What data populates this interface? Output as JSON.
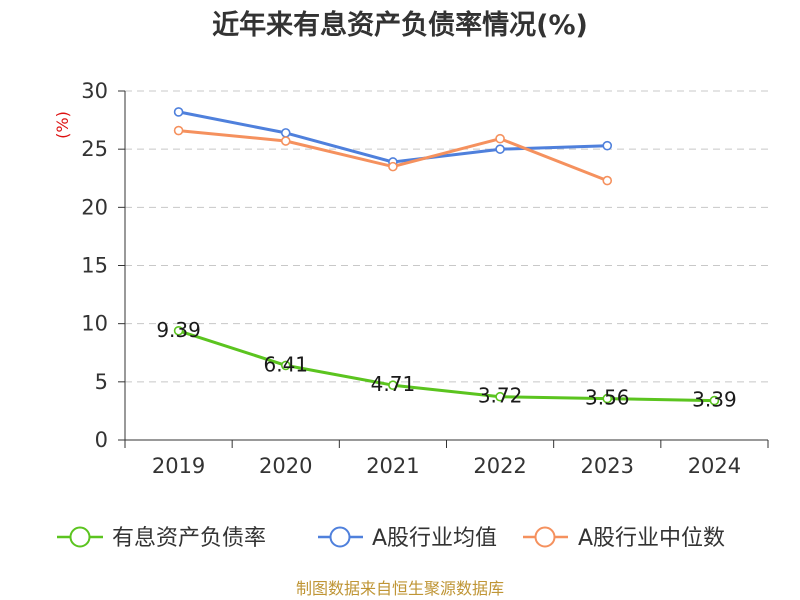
{
  "chart_data": {
    "type": "line",
    "title": "近年来有息资产负债率情况(%)",
    "xlabel": "",
    "ylabel": "(%)",
    "categories": [
      "2019",
      "2020",
      "2021",
      "2022",
      "2023",
      "2024"
    ],
    "ylim": [
      0,
      30
    ],
    "yticks": [
      0,
      5,
      10,
      15,
      20,
      25,
      30
    ],
    "grid": true,
    "legend": "bottom",
    "series": [
      {
        "name": "有息资产负债率",
        "color": "#5bc41f",
        "show_data_labels": true,
        "values": [
          9.39,
          6.41,
          4.71,
          3.72,
          3.56,
          3.39
        ]
      },
      {
        "name": "A股行业均值",
        "color": "#4f80dc",
        "show_data_labels": false,
        "values": [
          28.2,
          26.4,
          23.9,
          25.0,
          25.3,
          null
        ]
      },
      {
        "name": "A股行业中位数",
        "color": "#f5915e",
        "show_data_labels": false,
        "values": [
          26.6,
          25.7,
          23.5,
          25.9,
          22.3,
          null
        ]
      }
    ]
  },
  "footer": "制图数据来自恒生聚源数据库"
}
